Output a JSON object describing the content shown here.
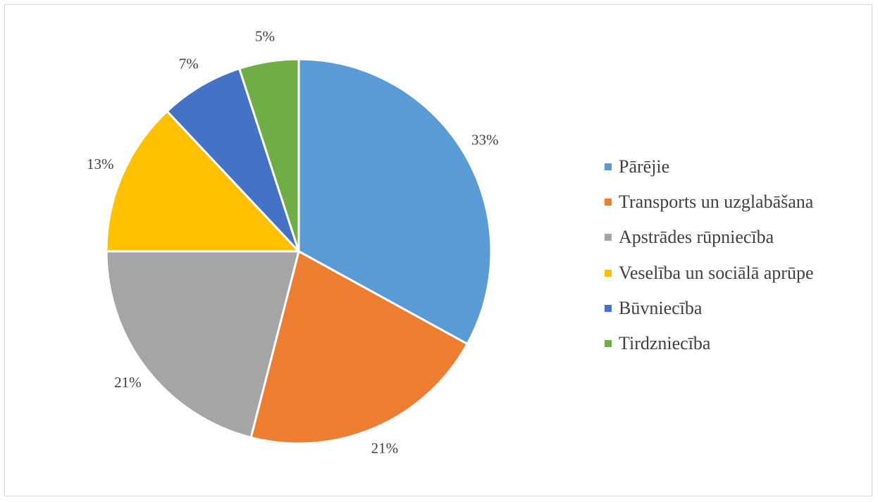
{
  "chart_data": {
    "type": "pie",
    "title": "",
    "categories": [
      "Pārējie",
      "Transports un uzglabāšana",
      "Apstrādes rūpniecība",
      "Veselība un sociālā aprūpe",
      "Būvniecība",
      "Tirdzniecība"
    ],
    "values": [
      33,
      21,
      21,
      13,
      7,
      5
    ],
    "data_labels": [
      "33%",
      "21%",
      "21%",
      "13%",
      "7%",
      "5%"
    ],
    "colors": [
      "#5B9BD5",
      "#ED7D31",
      "#A5A5A5",
      "#FFC000",
      "#4472C4",
      "#70AD47"
    ],
    "legend_position": "right",
    "start_angle": "12 o'clock",
    "direction": "clockwise"
  }
}
